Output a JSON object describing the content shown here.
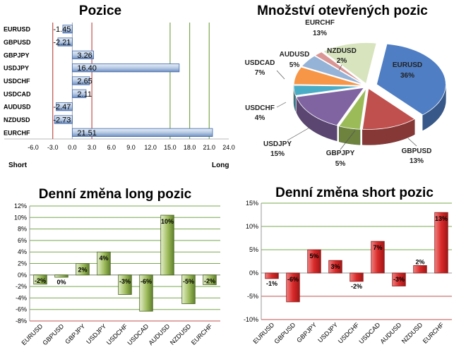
{
  "chart_data": [
    {
      "type": "bar",
      "orientation": "horizontal",
      "title": "Pozice",
      "categories": [
        "EURUSD",
        "GBPUSD",
        "GBPJPY",
        "USDJPY",
        "USDCHF",
        "USDCAD",
        "AUDUSD",
        "NZDUSD",
        "EURCHF"
      ],
      "values": [
        -1.45,
        -2.21,
        3.26,
        16.4,
        2.65,
        2.11,
        -2.47,
        -2.73,
        21.51
      ],
      "value_labels": [
        "-1.45",
        "-2.21",
        "3.26",
        "16.40",
        "2.65",
        "2.11",
        "-2.47",
        "-2.73",
        "21.51"
      ],
      "xlim": [
        -6,
        24
      ],
      "xticks": [
        "-6.0",
        "-3.0",
        "0.0",
        "3.0",
        "6.0",
        "9.0",
        "12.0",
        "15.0",
        "18.0",
        "21.0",
        "24.0"
      ],
      "left_label": "Short",
      "right_label": "Long",
      "colors": {
        "bar": "#b9cbe3",
        "bar_edge": "#3f66a8",
        "red_line": "#c0504d",
        "green_line": "#7aa84f"
      }
    },
    {
      "type": "pie",
      "title": "Množství otevřených pozic",
      "slices": [
        {
          "label": "EURUSD",
          "value": 36,
          "text": "36%",
          "color": "#4f7ec4"
        },
        {
          "label": "GBPUSD",
          "value": 13,
          "text": "13%",
          "color": "#c0504d"
        },
        {
          "label": "GBPJPY",
          "value": 5,
          "text": "5%",
          "color": "#9bbb59"
        },
        {
          "label": "USDJPY",
          "value": 15,
          "text": "15%",
          "color": "#8064a2"
        },
        {
          "label": "USDCHF",
          "value": 4,
          "text": "4%",
          "color": "#4bacc6"
        },
        {
          "label": "USDCAD",
          "value": 7,
          "text": "7%",
          "color": "#f79646"
        },
        {
          "label": "AUDUSD",
          "value": 5,
          "text": "5%",
          "color": "#95b3d7"
        },
        {
          "label": "NZDUSD",
          "value": 2,
          "text": "2%",
          "color": "#d99694"
        },
        {
          "label": "EURCHF",
          "value": 13,
          "text": "13%",
          "color": "#d7e4bd"
        }
      ]
    },
    {
      "type": "bar",
      "title": "Denní změna long pozic",
      "categories": [
        "EURUSD",
        "GBPUSD",
        "GBPJPY",
        "USDJPY",
        "USDCHF",
        "USDCAD",
        "AUDUSD",
        "NZDUSD",
        "EURCHF"
      ],
      "values": [
        -1.6,
        -0.4,
        2.0,
        4.0,
        -3.4,
        -6.3,
        10.4,
        -5.0,
        -1.7
      ],
      "value_labels": [
        "-2%",
        "0%",
        "2%",
        "4%",
        "-3%",
        "-6%",
        "10%",
        "-5%",
        "-2%"
      ],
      "ylim": [
        -8,
        12
      ],
      "yticks": [
        "-8%",
        "-6%",
        "-4%",
        "-2%",
        "0%",
        "2%",
        "4%",
        "6%",
        "8%",
        "10%",
        "12%"
      ],
      "colors": {
        "bar": "#7a9a3e",
        "bar_light": "#d5e5b3",
        "bar_edge": "#4a6422",
        "grid": "#7aa84f",
        "bottom_grid": "#c0504d"
      }
    },
    {
      "type": "bar",
      "title": "Denní změna short pozic",
      "categories": [
        "EURUSD",
        "GBPUSD",
        "GBPJPY",
        "USDJPY",
        "USDCHF",
        "USDCAD",
        "AUDUSD",
        "NZDUSD",
        "EURCHF"
      ],
      "values": [
        -1.2,
        -6.2,
        5.0,
        2.7,
        -1.8,
        6.8,
        -2.8,
        1.6,
        13.0
      ],
      "value_labels": [
        "-1%",
        "-6%",
        "5%",
        "3%",
        "-2%",
        "7%",
        "-3%",
        "2%",
        "13%"
      ],
      "ylim": [
        -10,
        15
      ],
      "yticks": [
        "-10%",
        "-5%",
        "0%",
        "5%",
        "10%",
        "15%"
      ],
      "colors": {
        "bar": "#d22b2b",
        "bar_edge": "#8b1a1a",
        "grid": "#7aa84f",
        "neg_grid": "#c0504d"
      }
    }
  ]
}
